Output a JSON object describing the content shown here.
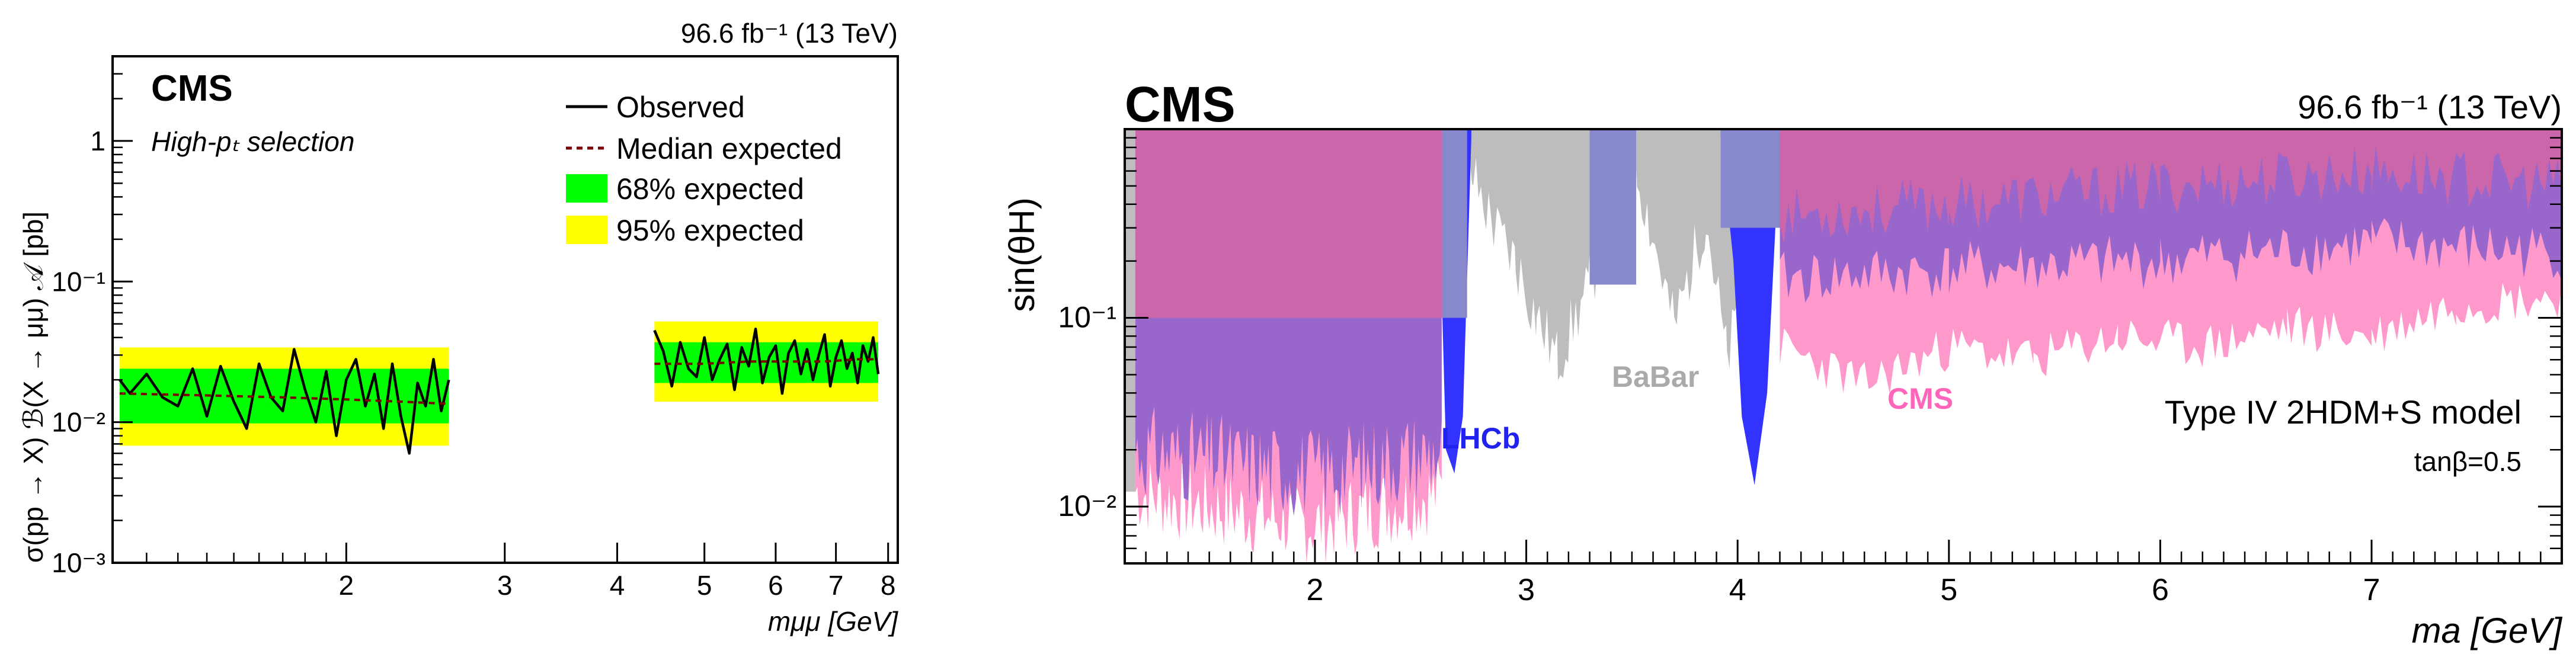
{
  "chart_data": [
    {
      "type": "line",
      "lumi_label": "96.6 fb⁻¹ (13 TeV)",
      "experiment": "CMS",
      "selection": "High-pₜ selection",
      "ylabel": "σ(pp → X) ℬ(X → μμ) 𝒜 [pb]",
      "xlabel": "mμμ [GeV]",
      "log_x": true,
      "log_y": true,
      "xlim": [
        1.1,
        8.2
      ],
      "ylim": [
        0.001,
        4
      ],
      "x_ticks": [
        "2",
        "3",
        "4",
        "5",
        "6",
        "7",
        "8"
      ],
      "y_ticks": [
        "10⁻³",
        "10⁻²",
        "10⁻¹",
        "1"
      ],
      "legend": [
        "Observed",
        "Median expected",
        "68% expected",
        "95% expected"
      ],
      "colors": {
        "band68": "#00ff00",
        "band95": "#ffff00",
        "observed": "#000000",
        "expected": "#7a0000"
      },
      "series": [
        {
          "name": "Observed",
          "x": [
            1.12,
            1.15,
            1.2,
            1.25,
            1.3,
            1.35,
            1.4,
            1.45,
            1.5,
            1.55,
            1.6,
            1.65,
            1.7,
            1.75,
            1.8,
            1.85,
            1.9,
            1.95,
            2.0,
            2.05,
            2.1,
            2.15,
            2.2,
            2.25,
            2.3,
            2.35,
            2.4,
            2.45,
            2.5,
            2.55,
            2.6
          ],
          "y": [
            0.02,
            0.016,
            0.022,
            0.015,
            0.013,
            0.024,
            0.011,
            0.025,
            0.014,
            0.009,
            0.026,
            0.015,
            0.012,
            0.033,
            0.017,
            0.01,
            0.023,
            0.008,
            0.02,
            0.028,
            0.013,
            0.022,
            0.009,
            0.026,
            0.011,
            0.006,
            0.019,
            0.013,
            0.028,
            0.012,
            0.02
          ]
        },
        {
          "name": "Observed",
          "x": [
            4.4,
            4.5,
            4.6,
            4.7,
            4.8,
            4.9,
            5.0,
            5.1,
            5.2,
            5.3,
            5.4,
            5.5,
            5.6,
            5.7,
            5.8,
            5.9,
            6.0,
            6.1,
            6.2,
            6.3,
            6.4,
            6.5,
            6.6,
            6.7,
            6.8,
            6.9,
            7.0,
            7.1,
            7.2,
            7.3,
            7.4,
            7.5,
            7.6,
            7.7,
            7.8
          ],
          "y": [
            0.045,
            0.032,
            0.018,
            0.037,
            0.024,
            0.021,
            0.04,
            0.02,
            0.028,
            0.036,
            0.017,
            0.034,
            0.025,
            0.046,
            0.019,
            0.029,
            0.035,
            0.016,
            0.031,
            0.038,
            0.022,
            0.033,
            0.02,
            0.03,
            0.042,
            0.018,
            0.029,
            0.038,
            0.024,
            0.031,
            0.019,
            0.035,
            0.027,
            0.04,
            0.022
          ]
        },
        {
          "name": "Median expected",
          "x": [
            1.12,
            1.4,
            1.7,
            2.0,
            2.3,
            2.6
          ],
          "y": [
            0.016,
            0.0155,
            0.015,
            0.0145,
            0.014,
            0.0135
          ]
        },
        {
          "name": "Median expected",
          "x": [
            4.4,
            5.0,
            5.6,
            6.2,
            6.8,
            7.4,
            7.8
          ],
          "y": [
            0.026,
            0.026,
            0.027,
            0.027,
            0.027,
            0.028,
            0.028
          ]
        }
      ],
      "bands": [
        {
          "name": "95% expected",
          "x_range": [
            1.12,
            2.6
          ],
          "lower": 0.0068,
          "upper": 0.034
        },
        {
          "name": "68% expected",
          "x_range": [
            1.12,
            2.6
          ],
          "lower": 0.0098,
          "upper": 0.024
        },
        {
          "name": "95% expected",
          "x_range": [
            4.4,
            7.8
          ],
          "lower": 0.014,
          "upper": 0.052
        },
        {
          "name": "68% expected",
          "x_range": [
            4.4,
            7.8
          ],
          "lower": 0.019,
          "upper": 0.037
        }
      ]
    },
    {
      "type": "area",
      "experiment": "CMS",
      "lumi_label": "96.6 fb⁻¹ (13 TeV)",
      "ylabel": "sin(θH)",
      "xlabel": "ma  [GeV]",
      "log_y": true,
      "xlim": [
        1.1,
        7.9
      ],
      "ylim": [
        0.005,
        1
      ],
      "x_ticks": [
        "2",
        "3",
        "4",
        "5",
        "6",
        "7"
      ],
      "y_ticks": [
        "10⁻²",
        "10⁻¹"
      ],
      "model_label": "Type IV 2HDM+S model",
      "tanbeta_label": "tanβ=0.5",
      "region_labels": [
        "LHCb",
        "BaBar",
        "CMS"
      ],
      "colors": {
        "lhcb": "#3333ff",
        "babar": "#bdbdbd",
        "cms": "#ff99cc",
        "overlap": "#9966cc",
        "lhcb_babar_overlap": "#8888cc",
        "cms_babar_overlap": "#cc66aa"
      },
      "exclusion_boundaries": [
        {
          "name": "BaBar",
          "x": [
            1.1,
            1.15,
            2.6,
            2.75,
            2.85,
            2.95,
            3.05,
            3.15,
            3.3,
            3.5,
            3.7,
            3.85,
            3.95,
            4.2
          ],
          "y": [
            0.3,
            0.02,
            0.6,
            0.55,
            0.3,
            0.2,
            0.1,
            0.06,
            0.15,
            0.8,
            0.09,
            0.35,
            0.06,
            0.8
          ]
        },
        {
          "name": "LHCb",
          "x": [
            2.6,
            2.65,
            2.7,
            3.95,
            4.0,
            4.05,
            4.1,
            4.2
          ],
          "y": [
            0.02,
            0.015,
            0.03,
            0.3,
            0.05,
            0.013,
            0.03,
            0.1
          ]
        },
        {
          "name": "CMS",
          "x": [
            1.15,
            1.4,
            1.8,
            2.2,
            2.6,
            4.2,
            4.6,
            5.0,
            5.4,
            5.8,
            6.2,
            6.6,
            7.0,
            7.4,
            7.9
          ],
          "y": [
            0.012,
            0.01,
            0.008,
            0.009,
            0.01,
            0.07,
            0.045,
            0.07,
            0.06,
            0.08,
            0.07,
            0.09,
            0.08,
            0.12,
            0.13
          ]
        }
      ]
    }
  ]
}
